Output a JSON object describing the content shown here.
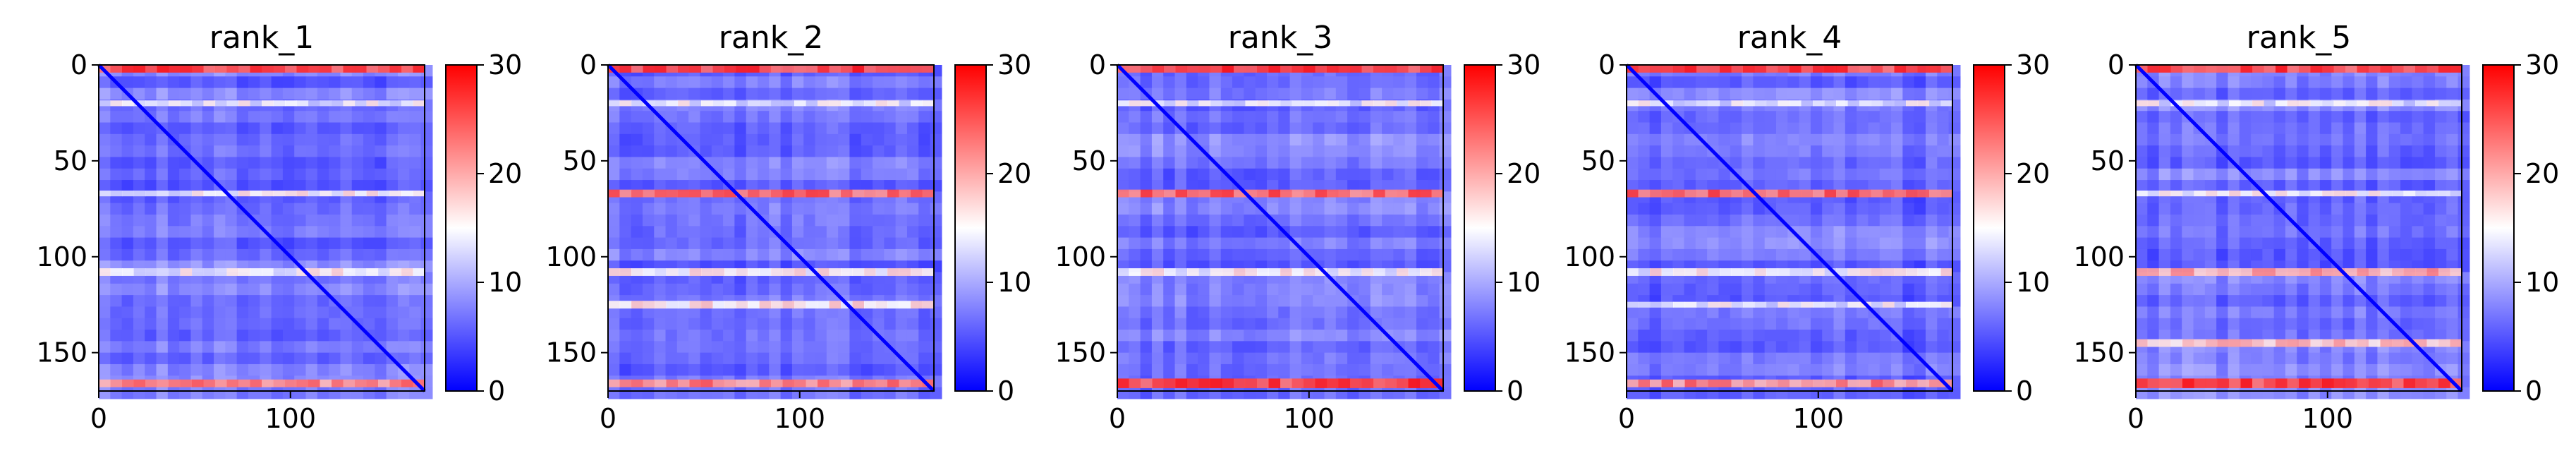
{
  "colormap": {
    "name": "bwr",
    "low": "#0000ff",
    "mid": "#ffffff",
    "high": "#ff0000"
  },
  "chart_data": [
    {
      "type": "heatmap",
      "title": "rank_1",
      "size": 170,
      "x_ticks": [
        0,
        100
      ],
      "y_ticks": [
        0,
        50,
        100,
        150
      ],
      "colorbar": {
        "vmin": 0,
        "vmax": 30,
        "ticks": [
          0,
          10,
          20,
          30
        ]
      },
      "bands": [
        {
          "row": 0,
          "value": 26,
          "width": 4
        },
        {
          "row": 20,
          "value": 14,
          "width": 3
        },
        {
          "row": 67,
          "value": 15,
          "width": 3
        },
        {
          "row": 108,
          "value": 15,
          "width": 4
        },
        {
          "row": 166,
          "value": 22,
          "width": 4
        }
      ]
    },
    {
      "type": "heatmap",
      "title": "rank_2",
      "size": 170,
      "x_ticks": [
        0,
        100
      ],
      "y_ticks": [
        0,
        50,
        100,
        150
      ],
      "colorbar": {
        "vmin": 0,
        "vmax": 30,
        "ticks": [
          0,
          10,
          20,
          30
        ]
      },
      "bands": [
        {
          "row": 0,
          "value": 26,
          "width": 4
        },
        {
          "row": 20,
          "value": 14,
          "width": 3
        },
        {
          "row": 67,
          "value": 24,
          "width": 4
        },
        {
          "row": 108,
          "value": 15,
          "width": 4
        },
        {
          "row": 125,
          "value": 16,
          "width": 4
        },
        {
          "row": 166,
          "value": 22,
          "width": 4
        }
      ]
    },
    {
      "type": "heatmap",
      "title": "rank_3",
      "size": 170,
      "x_ticks": [
        0,
        100
      ],
      "y_ticks": [
        0,
        50,
        100,
        150
      ],
      "colorbar": {
        "vmin": 0,
        "vmax": 30,
        "ticks": [
          0,
          10,
          20,
          30
        ]
      },
      "bands": [
        {
          "row": 0,
          "value": 26,
          "width": 4
        },
        {
          "row": 20,
          "value": 14,
          "width": 3
        },
        {
          "row": 67,
          "value": 24,
          "width": 4
        },
        {
          "row": 108,
          "value": 15,
          "width": 4
        },
        {
          "row": 166,
          "value": 26,
          "width": 5
        }
      ]
    },
    {
      "type": "heatmap",
      "title": "rank_4",
      "size": 170,
      "x_ticks": [
        0,
        100
      ],
      "y_ticks": [
        0,
        50,
        100,
        150
      ],
      "colorbar": {
        "vmin": 0,
        "vmax": 30,
        "ticks": [
          0,
          10,
          20,
          30
        ]
      },
      "bands": [
        {
          "row": 0,
          "value": 26,
          "width": 4
        },
        {
          "row": 20,
          "value": 14,
          "width": 3
        },
        {
          "row": 67,
          "value": 24,
          "width": 4
        },
        {
          "row": 108,
          "value": 15,
          "width": 4
        },
        {
          "row": 125,
          "value": 14,
          "width": 3
        },
        {
          "row": 166,
          "value": 22,
          "width": 4
        }
      ]
    },
    {
      "type": "heatmap",
      "title": "rank_5",
      "size": 170,
      "x_ticks": [
        0,
        100
      ],
      "y_ticks": [
        0,
        50,
        100,
        150
      ],
      "colorbar": {
        "vmin": 0,
        "vmax": 30,
        "ticks": [
          0,
          10,
          20,
          30
        ]
      },
      "bands": [
        {
          "row": 0,
          "value": 26,
          "width": 4
        },
        {
          "row": 20,
          "value": 14,
          "width": 3
        },
        {
          "row": 67,
          "value": 15,
          "width": 3
        },
        {
          "row": 108,
          "value": 20,
          "width": 4
        },
        {
          "row": 145,
          "value": 18,
          "width": 4
        },
        {
          "row": 166,
          "value": 26,
          "width": 5
        }
      ]
    }
  ]
}
